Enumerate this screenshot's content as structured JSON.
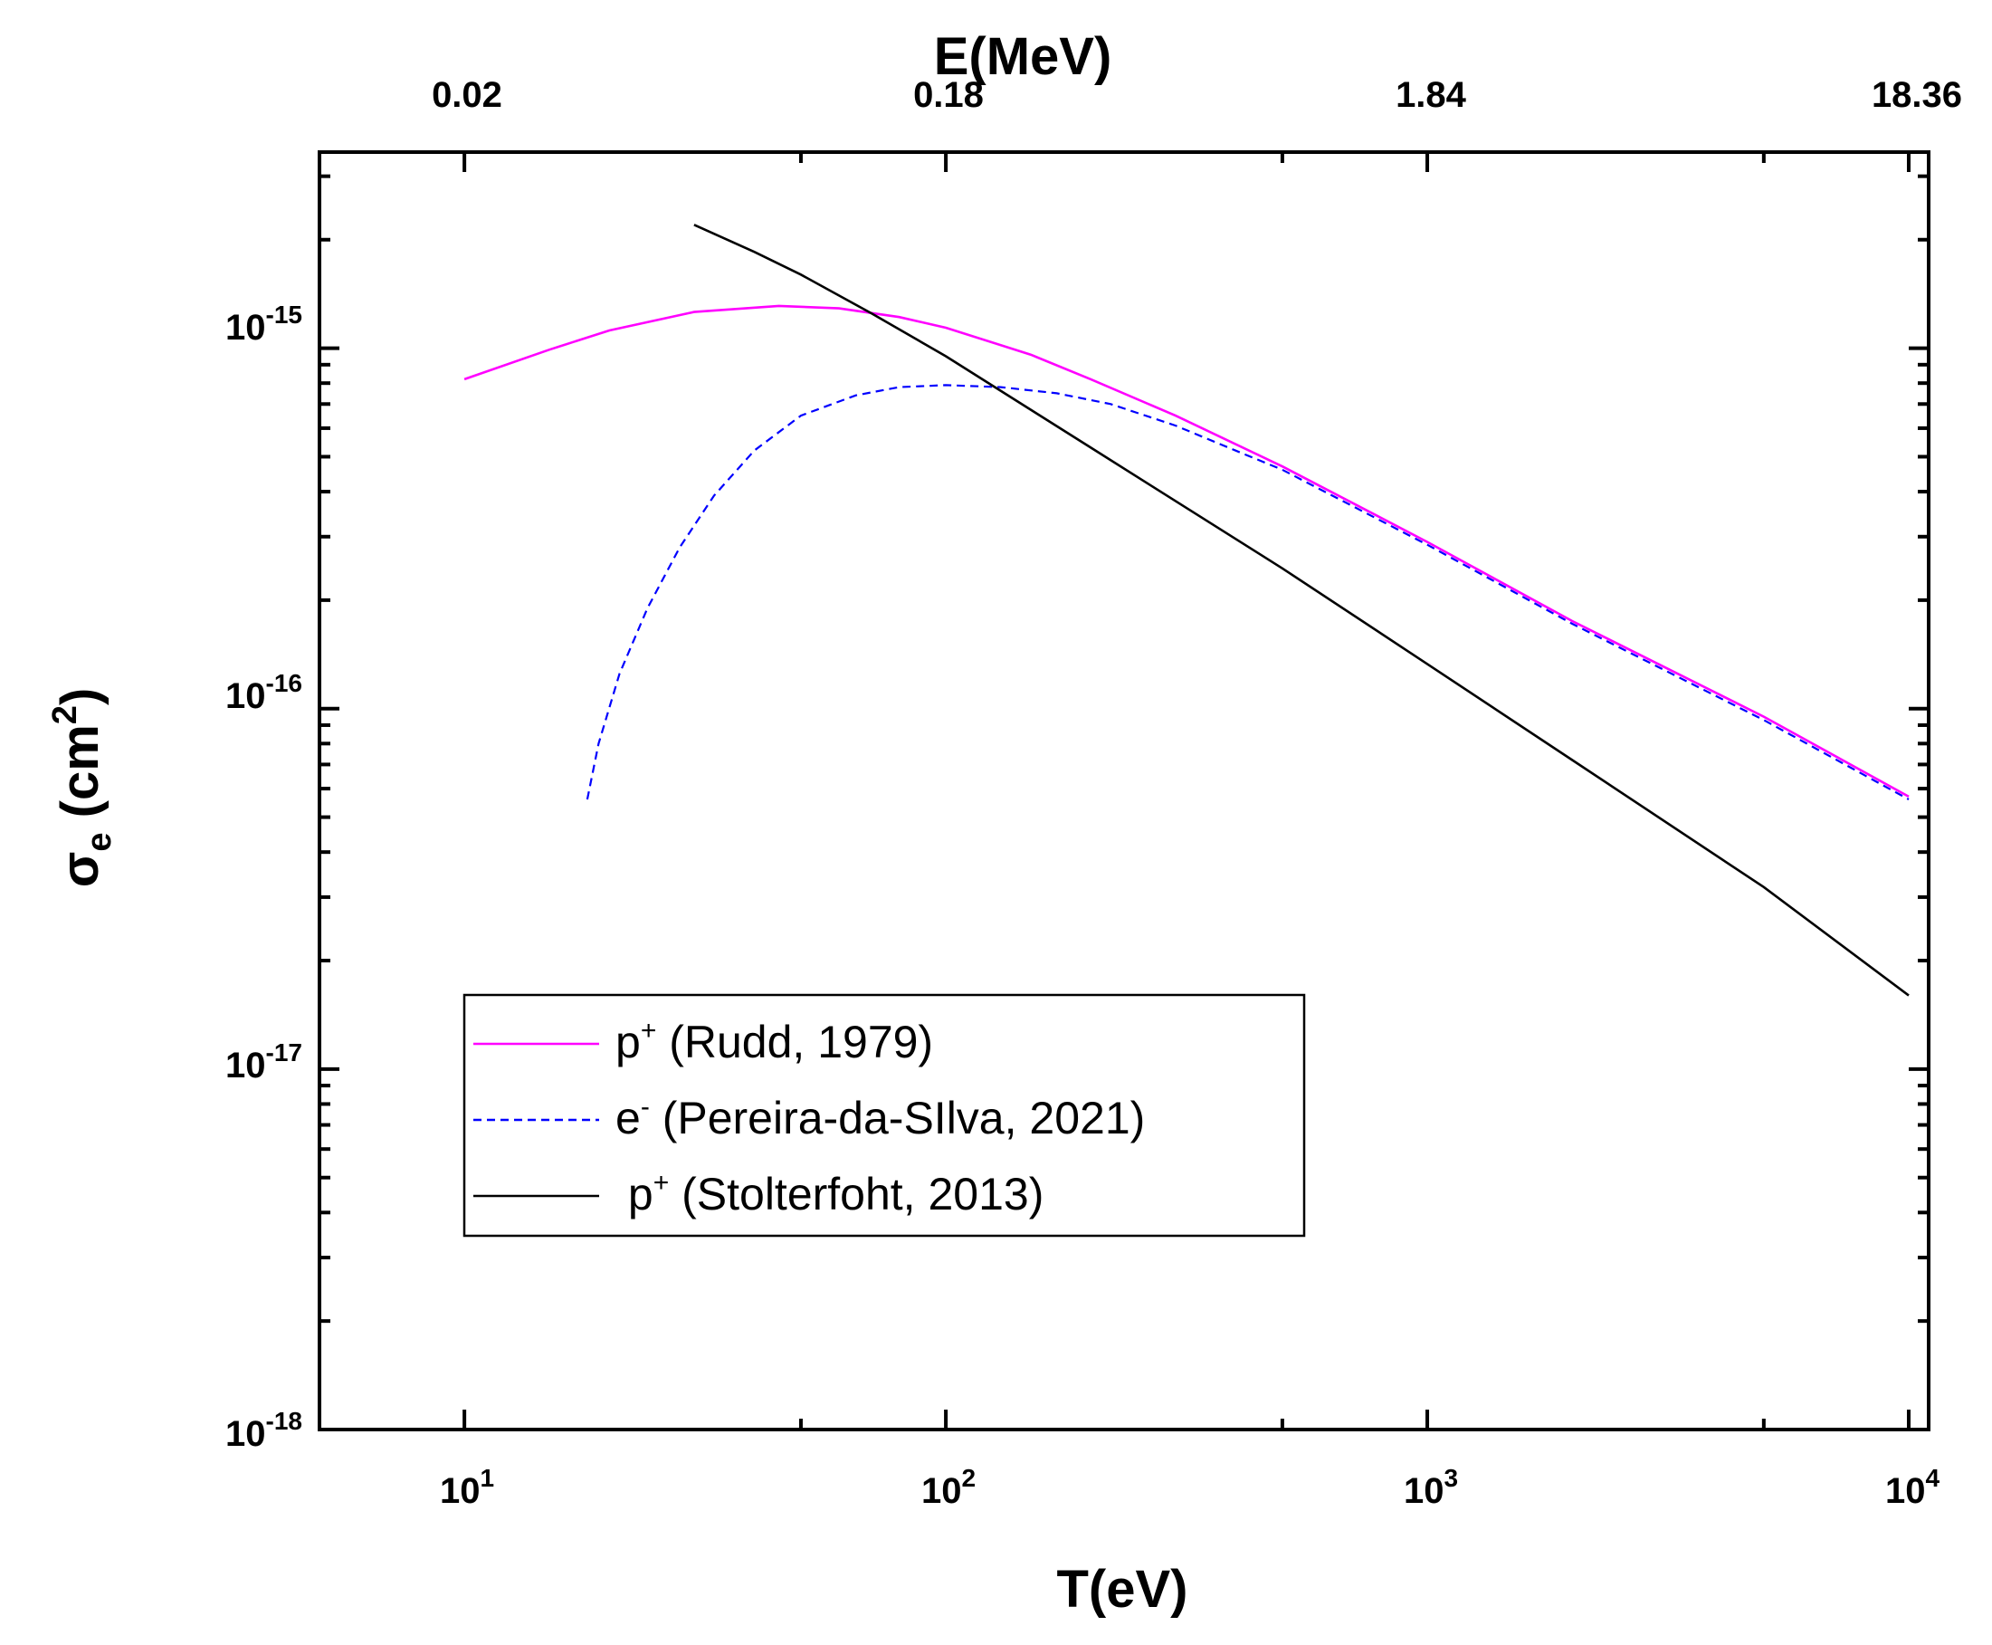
{
  "chart_data": {
    "type": "line",
    "title": "",
    "xlabel": "T(eV)",
    "ylabel": {
      "main": "σ",
      "sub": "e",
      "unit_open": " (cm",
      "unit_sup": "2",
      "unit_close": ")"
    },
    "x_scale": "log",
    "y_scale": "log",
    "xlim": [
      5,
      11000
    ],
    "ylim": [
      1e-18,
      3.5e-15
    ],
    "x_ticks": [
      {
        "value": 10,
        "base": "10",
        "exp": "1"
      },
      {
        "value": 100,
        "base": "10",
        "exp": "2"
      },
      {
        "value": 1000,
        "base": "10",
        "exp": "3"
      },
      {
        "value": 10000,
        "base": "10",
        "exp": "4"
      }
    ],
    "y_ticks": [
      {
        "value": 1e-18,
        "base": "10",
        "exp": "-18"
      },
      {
        "value": 1e-17,
        "base": "10",
        "exp": "-17"
      },
      {
        "value": 1e-16,
        "base": "10",
        "exp": "-16"
      },
      {
        "value": 1e-15,
        "base": "10",
        "exp": "-15"
      }
    ],
    "top_axis": {
      "label": "E(MeV)",
      "ticks": [
        {
          "x": 10,
          "label": "0.02"
        },
        {
          "x": 100,
          "label": "0.18"
        },
        {
          "x": 1000,
          "label": "1.84"
        },
        {
          "x": 10000,
          "label": "18.36"
        }
      ]
    },
    "grid": false,
    "legend_position": "lower-left",
    "series": [
      {
        "name": "p+ (Rudd, 1979)",
        "legend": {
          "base": "p",
          "sup": "+",
          "rest": " (Rudd, 1979)"
        },
        "color": "#ff00ff",
        "dash": "solid",
        "x": [
          10,
          15,
          20,
          30,
          45,
          60,
          80,
          100,
          150,
          200,
          300,
          500,
          1000,
          2000,
          5000,
          10000
        ],
        "y": [
          8.2e-16,
          9.9e-16,
          1.12e-15,
          1.26e-15,
          1.31e-15,
          1.29e-15,
          1.22e-15,
          1.14e-15,
          9.6e-16,
          8.2e-16,
          6.5e-16,
          4.7e-16,
          2.9e-16,
          1.75e-16,
          9.5e-17,
          5.7e-17
        ]
      },
      {
        "name": "e- (Pereira-da-SIlva, 2021)",
        "legend": {
          "base": "e",
          "sup": "-",
          "rest": " (Pereira-da-SIlva, 2021)"
        },
        "color": "#0000ff",
        "dash": "dashed",
        "x": [
          18,
          19,
          21,
          24,
          28,
          33,
          40,
          50,
          65,
          80,
          100,
          130,
          170,
          220,
          300,
          400,
          500,
          1000,
          2000,
          5000,
          10000
        ],
        "y": [
          5.6e-17,
          8e-17,
          1.25e-16,
          1.9e-16,
          2.8e-16,
          3.9e-16,
          5.2e-16,
          6.5e-16,
          7.4e-16,
          7.8e-16,
          7.9e-16,
          7.8e-16,
          7.5e-16,
          7e-16,
          6.1e-16,
          5.2e-16,
          4.6e-16,
          2.85e-16,
          1.72e-16,
          9.3e-17,
          5.6e-17
        ]
      },
      {
        "name": "p+ (Stolterfoht, 2013)",
        "legend": {
          "base": " p",
          "sup": "+",
          "rest": " (Stolterfoht, 2013)"
        },
        "color": "#000000",
        "dash": "solid",
        "x": [
          30,
          40,
          50,
          70,
          100,
          200,
          500,
          1000,
          2000,
          5000,
          10000
        ],
        "y": [
          2.2e-15,
          1.85e-15,
          1.6e-15,
          1.25e-15,
          9.5e-16,
          5.3e-16,
          2.45e-16,
          1.33e-16,
          7.2e-17,
          3.2e-17,
          1.6e-17
        ]
      }
    ]
  }
}
